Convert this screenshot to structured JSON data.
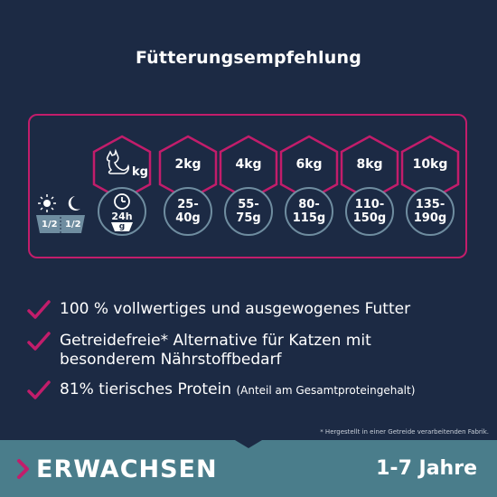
{
  "title": "Fütterungsempfehlung",
  "table": {
    "weight_unit": "kg",
    "clock_label": "24h",
    "bowl_unit": "g",
    "portion_day": "1/2",
    "portion_night": "1/2",
    "weights": [
      "2kg",
      "4kg",
      "6kg",
      "8kg",
      "10kg"
    ],
    "amounts": [
      "25-\n40g",
      "55-\n75g",
      "80-\n115g",
      "110-\n150g",
      "135-\n190g"
    ]
  },
  "features": [
    {
      "text": "100 % vollwertiges und ausgewogenes Futter",
      "note": ""
    },
    {
      "text": "Getreidefreie* Alternative für Katzen mit besonderem Nährstoffbedarf",
      "note": ""
    },
    {
      "text": "81% tierisches Protein",
      "note": "(Anteil am Gesamtproteingehalt)"
    }
  ],
  "footnote": "* Hergestellt in einer Getreide verarbeitenden Fabrik.",
  "banner": {
    "stage": "ERWACHSEN",
    "age": "1-7 Jahre"
  },
  "colors": {
    "background": "#1c2a44",
    "accent": "#c21d6b",
    "banner": "#4a7d8b",
    "circle_border": "#6f8da0"
  }
}
